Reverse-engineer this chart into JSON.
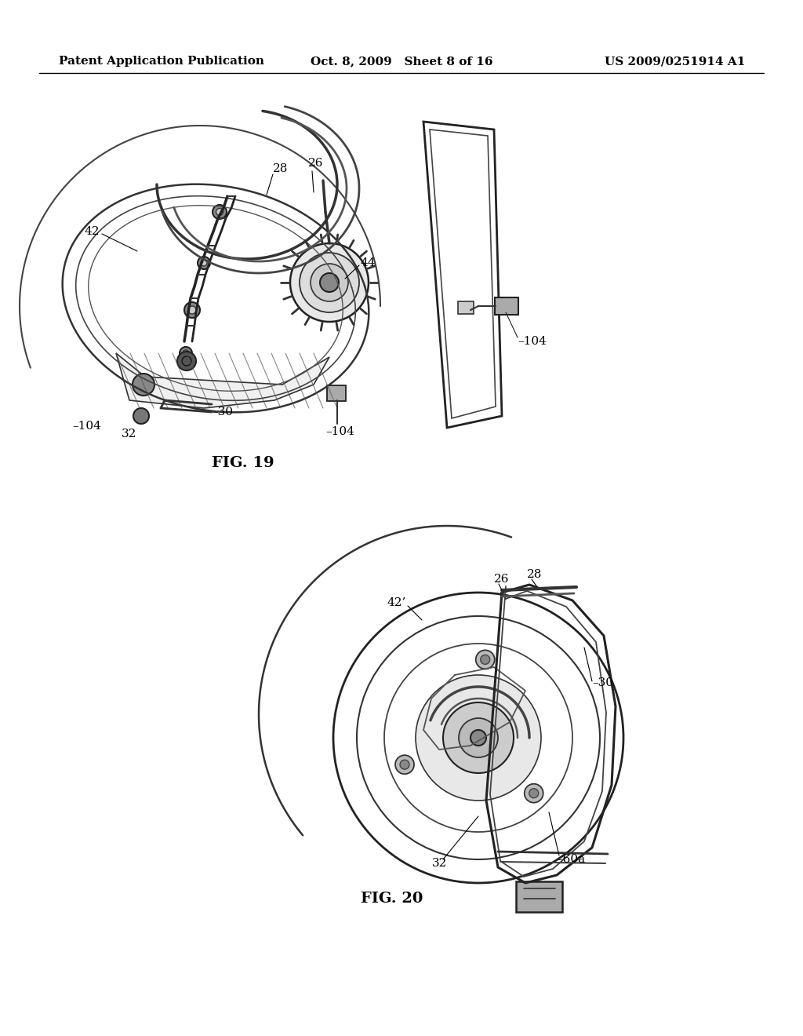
{
  "background_color": "#ffffff",
  "header_left": "Patent Application Publication",
  "header_center": "Oct. 8, 2009   Sheet 8 of 16",
  "header_right": "US 2009/0251914 A1",
  "header_fontsize": 11,
  "fig19_label": "FIG. 19",
  "fig20_label": "FIG. 20",
  "label_fontsize": 14,
  "ref_fontsize": 11,
  "line_color": "#000000"
}
